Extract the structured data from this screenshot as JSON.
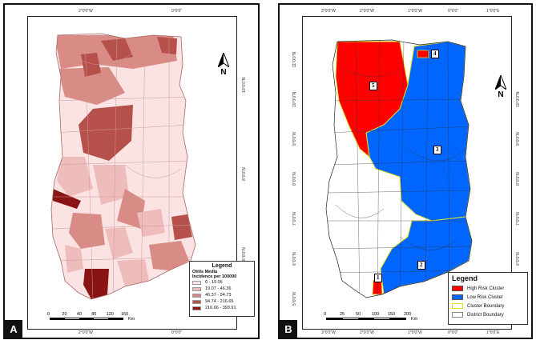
{
  "panel_a": {
    "letter": "A",
    "ticks_top": [
      "2°0'0\"W",
      "0°0'0\""
    ],
    "ticks_bottom": [
      "2°0'0\"W",
      "0°0'0\""
    ],
    "ticks_right": [
      "10°0'0\"N",
      "8°0'0\"N",
      "6°0'0\"N"
    ],
    "legend": {
      "title": "Legend",
      "subtitle": "Otitis Media",
      "measure": "Incidence per 100000",
      "classes": [
        {
          "label": "0 - 19.06",
          "color": "#fbe3e3"
        },
        {
          "label": "19.07 - 46.36",
          "color": "#efbcbc"
        },
        {
          "label": "46.37 - 94.73",
          "color": "#d98b85"
        },
        {
          "label": "94.74 - 216.65",
          "color": "#b5514a"
        },
        {
          "label": "216.66 - 393.91",
          "color": "#8a1313"
        }
      ]
    },
    "scale": {
      "ticks": [
        "0",
        "20",
        "40",
        "80",
        "120",
        "160"
      ],
      "unit": "Km"
    },
    "north_label": "N"
  },
  "panel_b": {
    "letter": "B",
    "ticks_top": [
      "3°0'0\"W",
      "2°0'0\"W",
      "1°0'0\"W",
      "0°0'0\"",
      "1°0'0\"E"
    ],
    "ticks_bottom": [
      "3°0'0\"W",
      "2°0'0\"W",
      "1°0'0\"W",
      "0°0'0\"",
      "1°0'0\"E"
    ],
    "ticks_left": [
      "11°0'0\"N",
      "10°0'0\"N",
      "9°0'0\"N",
      "8°0'0\"N",
      "7°0'0\"N",
      "6°0'0\"N",
      "5°0'0\"N"
    ],
    "ticks_right": [
      "10°0'0\"N",
      "9°0'0\"N",
      "8°0'0\"N",
      "7°0'0\"N",
      "6°0'0\"N",
      "5°0'0\"N"
    ],
    "legend": {
      "title": "Legend",
      "items": [
        {
          "label": "High Risk Cluster",
          "color": "#ff0000",
          "border": "#555555"
        },
        {
          "label": "Low Risk Cluster",
          "color": "#0066ff",
          "border": "#555555"
        },
        {
          "label": "Cluster Boundary",
          "color": "#ffffff",
          "border": "#e0e020"
        },
        {
          "label": "District Boundary",
          "color": "#ffffff",
          "border": "#888888"
        }
      ]
    },
    "clusters": [
      "1",
      "2",
      "3",
      "4",
      "5"
    ],
    "scale": {
      "ticks": [
        "0",
        "25",
        "50",
        "100",
        "150",
        "200"
      ],
      "unit": "Km"
    },
    "north_label": "N"
  }
}
